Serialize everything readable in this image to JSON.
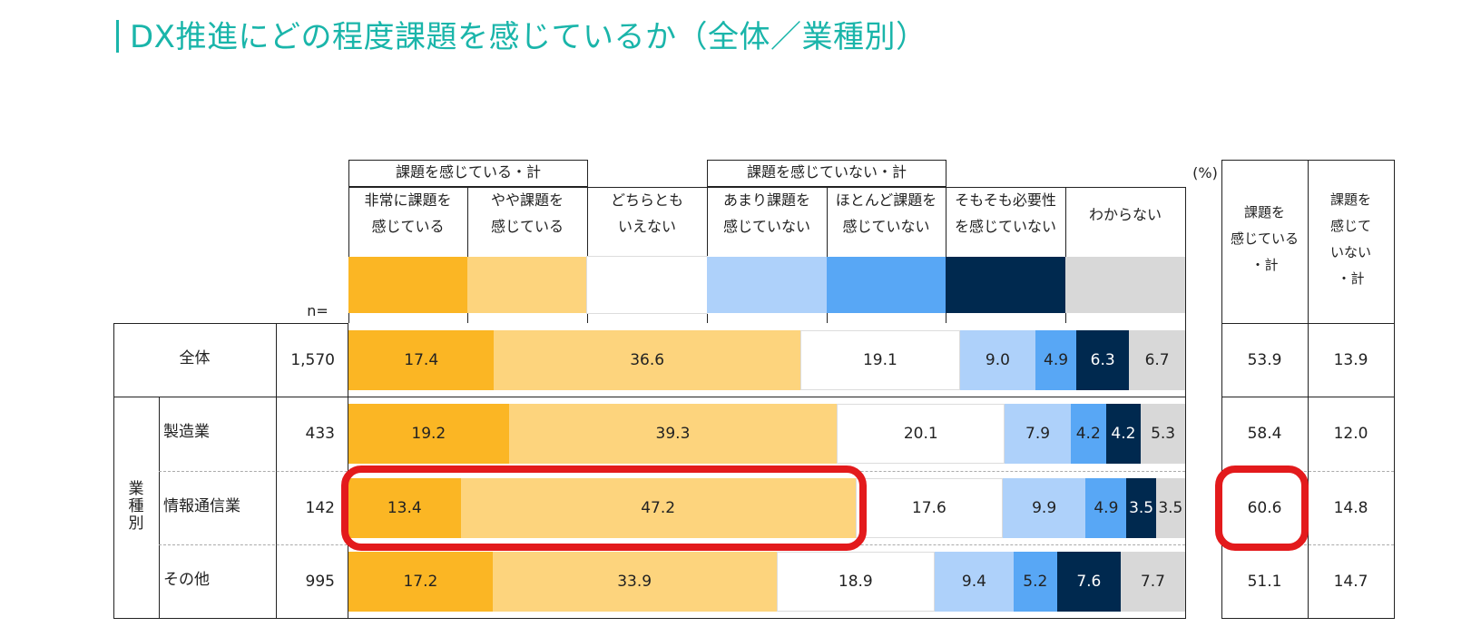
{
  "header": {
    "title": "DX推進にどの程度課題を感じているか（全体／業種別）"
  },
  "chart_data": {
    "type": "bar",
    "orientation": "horizontal-stacked-100",
    "unit_label": "(%)",
    "n_label": "n=",
    "group_headers": {
      "feel": "課題を感じている・計",
      "notfeel": "課題を感じていない・計"
    },
    "categories": [
      [
        "非常に課題を",
        "感じている"
      ],
      [
        "やや課題を",
        "感じている"
      ],
      [
        "どちらとも",
        "いえない"
      ],
      [
        "あまり課題を",
        "感じていない"
      ],
      [
        "ほとんど課題を",
        "感じていない"
      ],
      [
        "そもそも必要性",
        "を感じていない"
      ],
      [
        "わからない"
      ]
    ],
    "colors": [
      "#fbb624",
      "#fdd47d",
      "#ffffff",
      "#aed1fa",
      "#58a7f5",
      "#00294f",
      "#d8d8d8"
    ],
    "label_colors": [
      "#222222",
      "#222222",
      "#222222",
      "#222222",
      "#222222",
      "#ffffff",
      "#222222"
    ],
    "summary_headers": [
      [
        "課題を",
        "感じている",
        "・計"
      ],
      [
        "課題を",
        "感じて",
        "いない",
        "・計"
      ]
    ],
    "industry_label": [
      "業",
      "種",
      "別"
    ],
    "rows": [
      {
        "label": "全体",
        "n": "1,570",
        "values": [
          17.4,
          36.6,
          19.1,
          9.0,
          4.9,
          6.3,
          6.7
        ],
        "labels": [
          "17.4",
          "36.6",
          "19.1",
          "9.0",
          "4.9",
          "6.3",
          "6.7"
        ],
        "sum_feel": "53.9",
        "sum_notfeel": "13.9"
      },
      {
        "label": "製造業",
        "n": "433",
        "values": [
          19.2,
          39.3,
          20.1,
          7.9,
          4.2,
          4.2,
          5.3
        ],
        "labels": [
          "19.2",
          "39.3",
          "20.1",
          "7.9",
          "4.2",
          "4.2",
          "5.3"
        ],
        "sum_feel": "58.4",
        "sum_notfeel": "12.0"
      },
      {
        "label": "情報通信業",
        "n": "142",
        "values": [
          13.4,
          47.2,
          17.6,
          9.9,
          4.9,
          3.5,
          3.5
        ],
        "labels": [
          "13.4",
          "47.2",
          "17.6",
          "9.9",
          "4.9",
          "3.5",
          "3.5"
        ],
        "sum_feel": "60.6",
        "sum_notfeel": "14.8"
      },
      {
        "label": "その他",
        "n": "995",
        "values": [
          17.2,
          33.9,
          18.9,
          9.4,
          5.2,
          7.6,
          7.7
        ],
        "labels": [
          "17.2",
          "33.9",
          "18.9",
          "9.4",
          "5.2",
          "7.6",
          "7.7"
        ],
        "sum_feel": "51.1",
        "sum_notfeel": "14.7"
      }
    ],
    "highlighted_row": "情報通信業",
    "highlight_color": "#e31a1c"
  }
}
